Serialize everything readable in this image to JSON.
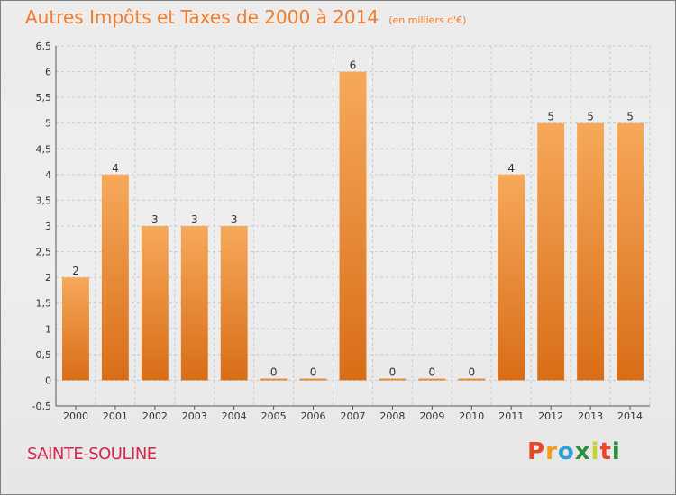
{
  "chart_data": {
    "type": "bar",
    "title": "Autres Impôts et Taxes de 2000 à 2014",
    "unit": "(en milliers d'€)",
    "categories": [
      "2000",
      "2001",
      "2002",
      "2003",
      "2004",
      "2005",
      "2006",
      "2007",
      "2008",
      "2009",
      "2010",
      "2011",
      "2012",
      "2013",
      "2014"
    ],
    "values": [
      2,
      4,
      3,
      3,
      3,
      0,
      0,
      6,
      0,
      0,
      0,
      4,
      5,
      5,
      5
    ],
    "ylim": [
      -0.5,
      6.5
    ],
    "yticks": [
      "-0,5",
      "0",
      "0,5",
      "1",
      "1,5",
      "2",
      "2,5",
      "3",
      "3,5",
      "4",
      "4,5",
      "5",
      "5,5",
      "6",
      "6,5"
    ],
    "grid": true,
    "bar_color": "#f08a2c"
  },
  "location": "SAINTE-SOULINE",
  "brand": {
    "letters": [
      "P",
      "r",
      "o",
      "x",
      "i",
      "t",
      "i"
    ],
    "colors": [
      "#e9462c",
      "#f39a1b",
      "#2f9fd8",
      "#2a8f3b",
      "#c8d32a",
      "#e9462c",
      "#2a8f3b"
    ]
  }
}
